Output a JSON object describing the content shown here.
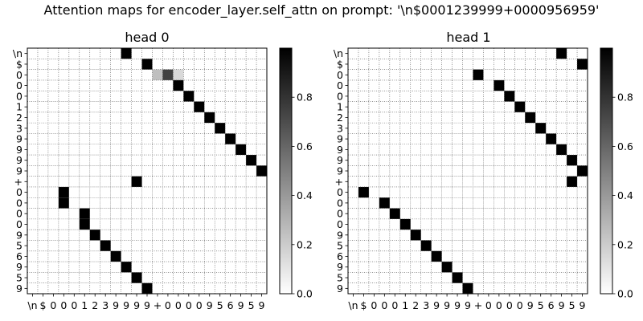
{
  "figure": {
    "title": "Attention maps for encoder_layer.self_attn on prompt: '\\n$0001239999+0000956959'"
  },
  "chart_data": [
    {
      "type": "heatmap",
      "title": "head 0",
      "x_tick_labels": [
        "\\n",
        "$",
        "0",
        "0",
        "0",
        "1",
        "2",
        "3",
        "9",
        "9",
        "9",
        "9",
        "+",
        "0",
        "0",
        "0",
        "0",
        "9",
        "5",
        "6",
        "9",
        "5",
        "9"
      ],
      "y_tick_labels": [
        "\\n",
        "$",
        "0",
        "0",
        "0",
        "1",
        "2",
        "3",
        "9",
        "9",
        "9",
        "9",
        "+",
        "0",
        "0",
        "0",
        "0",
        "9",
        "5",
        "6",
        "9",
        "5",
        "9"
      ],
      "value_range": [
        0,
        1
      ],
      "grid": true,
      "colormap": "gray_r",
      "colorbar_ticks": [
        "0.0",
        "0.2",
        "0.4",
        "0.6",
        "0.8"
      ],
      "cells": [
        {
          "row": 0,
          "col": 9,
          "value": 1.0
        },
        {
          "row": 1,
          "col": 11,
          "value": 1.0
        },
        {
          "row": 2,
          "col": 12,
          "value": 0.25
        },
        {
          "row": 2,
          "col": 13,
          "value": 0.75
        },
        {
          "row": 2,
          "col": 14,
          "value": 0.15
        },
        {
          "row": 3,
          "col": 14,
          "value": 1.0
        },
        {
          "row": 4,
          "col": 15,
          "value": 1.0
        },
        {
          "row": 5,
          "col": 16,
          "value": 1.0
        },
        {
          "row": 6,
          "col": 17,
          "value": 1.0
        },
        {
          "row": 7,
          "col": 18,
          "value": 1.0
        },
        {
          "row": 8,
          "col": 19,
          "value": 1.0
        },
        {
          "row": 9,
          "col": 20,
          "value": 1.0
        },
        {
          "row": 10,
          "col": 21,
          "value": 1.0
        },
        {
          "row": 11,
          "col": 22,
          "value": 1.0
        },
        {
          "row": 12,
          "col": 10,
          "value": 1.0
        },
        {
          "row": 13,
          "col": 3,
          "value": 1.0
        },
        {
          "row": 14,
          "col": 3,
          "value": 1.0
        },
        {
          "row": 15,
          "col": 5,
          "value": 1.0
        },
        {
          "row": 16,
          "col": 5,
          "value": 1.0
        },
        {
          "row": 17,
          "col": 6,
          "value": 1.0
        },
        {
          "row": 18,
          "col": 7,
          "value": 1.0
        },
        {
          "row": 19,
          "col": 8,
          "value": 1.0
        },
        {
          "row": 20,
          "col": 9,
          "value": 1.0
        },
        {
          "row": 21,
          "col": 10,
          "value": 1.0
        },
        {
          "row": 22,
          "col": 11,
          "value": 1.0
        }
      ]
    },
    {
      "type": "heatmap",
      "title": "head 1",
      "x_tick_labels": [
        "\\n",
        "$",
        "0",
        "0",
        "0",
        "1",
        "2",
        "3",
        "9",
        "9",
        "9",
        "9",
        "+",
        "0",
        "0",
        "0",
        "0",
        "9",
        "5",
        "6",
        "9",
        "5",
        "9"
      ],
      "y_tick_labels": [
        "\\n",
        "$",
        "0",
        "0",
        "0",
        "1",
        "2",
        "3",
        "9",
        "9",
        "9",
        "9",
        "+",
        "0",
        "0",
        "0",
        "0",
        "9",
        "5",
        "6",
        "9",
        "5",
        "9"
      ],
      "value_range": [
        0,
        1
      ],
      "grid": true,
      "colormap": "gray_r",
      "colorbar_ticks": [
        "0.0",
        "0.2",
        "0.4",
        "0.6",
        "0.8"
      ],
      "cells": [
        {
          "row": 0,
          "col": 20,
          "value": 1.0
        },
        {
          "row": 1,
          "col": 22,
          "value": 1.0
        },
        {
          "row": 2,
          "col": 12,
          "value": 1.0
        },
        {
          "row": 3,
          "col": 14,
          "value": 1.0
        },
        {
          "row": 4,
          "col": 15,
          "value": 1.0
        },
        {
          "row": 5,
          "col": 16,
          "value": 1.0
        },
        {
          "row": 6,
          "col": 17,
          "value": 1.0
        },
        {
          "row": 7,
          "col": 18,
          "value": 1.0
        },
        {
          "row": 8,
          "col": 19,
          "value": 1.0
        },
        {
          "row": 9,
          "col": 20,
          "value": 1.0
        },
        {
          "row": 10,
          "col": 21,
          "value": 1.0
        },
        {
          "row": 11,
          "col": 22,
          "value": 1.0
        },
        {
          "row": 12,
          "col": 21,
          "value": 1.0
        },
        {
          "row": 13,
          "col": 1,
          "value": 1.0
        },
        {
          "row": 14,
          "col": 3,
          "value": 1.0
        },
        {
          "row": 15,
          "col": 4,
          "value": 1.0
        },
        {
          "row": 16,
          "col": 5,
          "value": 1.0
        },
        {
          "row": 17,
          "col": 6,
          "value": 1.0
        },
        {
          "row": 18,
          "col": 7,
          "value": 1.0
        },
        {
          "row": 19,
          "col": 8,
          "value": 1.0
        },
        {
          "row": 20,
          "col": 9,
          "value": 1.0
        },
        {
          "row": 21,
          "col": 10,
          "value": 1.0
        },
        {
          "row": 22,
          "col": 11,
          "value": 1.0
        }
      ]
    }
  ]
}
